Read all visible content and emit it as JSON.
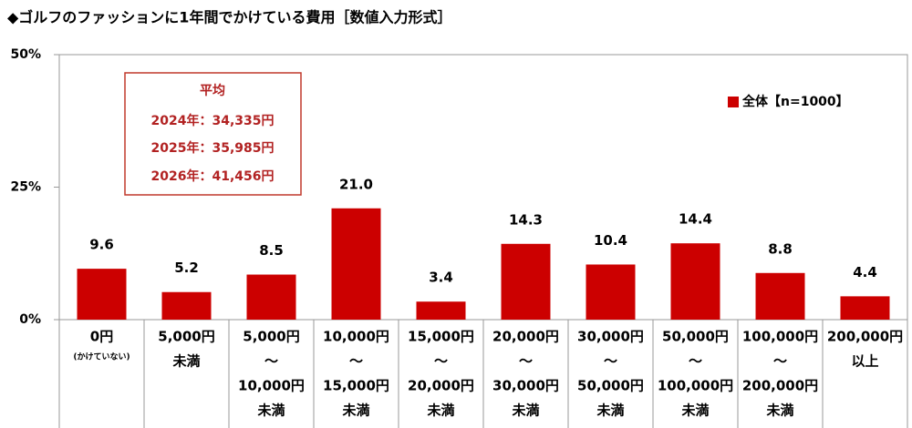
{
  "chart_data": {
    "type": "bar",
    "title": "◆ゴルフのファッションに1年間でかけている費用［数値入力形式］",
    "categories": [
      [
        "0円",
        "(かけていない)"
      ],
      [
        "5,000円",
        "未満"
      ],
      [
        "5,000円",
        "～",
        "10,000円",
        "未満"
      ],
      [
        "10,000円",
        "～",
        "15,000円",
        "未満"
      ],
      [
        "15,000円",
        "～",
        "20,000円",
        "未満"
      ],
      [
        "20,000円",
        "～",
        "30,000円",
        "未満"
      ],
      [
        "30,000円",
        "～",
        "50,000円",
        "未満"
      ],
      [
        "50,000円",
        "～",
        "100,000円",
        "未満"
      ],
      [
        "100,000円",
        "～",
        "200,000円",
        "未満"
      ],
      [
        "200,000円",
        "以上"
      ]
    ],
    "series": [
      {
        "name": "全体【n=1000】",
        "color": "#cc0000",
        "values": [
          9.6,
          5.2,
          8.5,
          21.0,
          3.4,
          14.3,
          10.4,
          14.4,
          8.8,
          4.4
        ],
        "value_labels": [
          "9.6",
          "5.2",
          "8.5",
          "21.0",
          "3.4",
          "14.3",
          "10.4",
          "14.4",
          "8.8",
          "4.4"
        ]
      }
    ],
    "ylim": [
      0,
      50
    ],
    "yticks": [
      {
        "value": 0,
        "label": "0%"
      },
      {
        "value": 25,
        "label": "25%"
      },
      {
        "value": 50,
        "label": "50%"
      }
    ],
    "legend": "top-right",
    "annotation": {
      "title": "平均",
      "lines": [
        "2024年：34,335円",
        "2025年：35,985円",
        "2026年：41,456円"
      ]
    }
  }
}
